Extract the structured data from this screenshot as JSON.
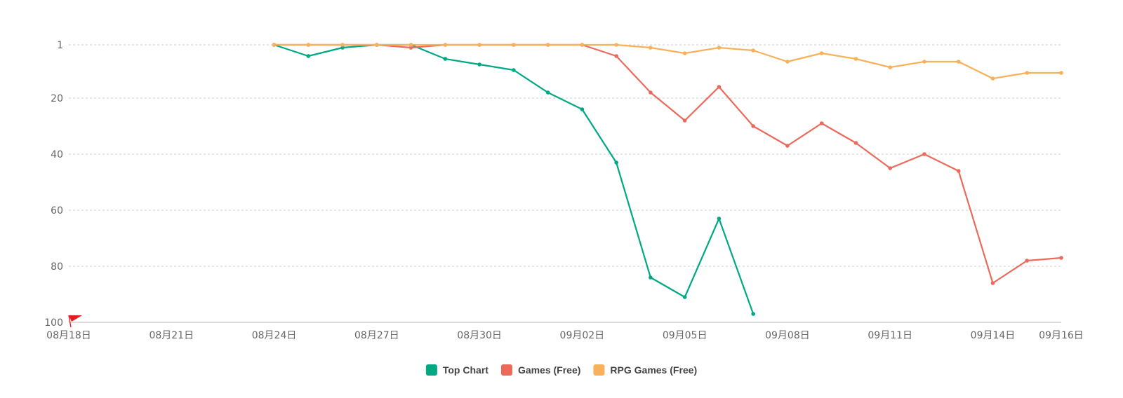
{
  "chart_data": {
    "type": "line",
    "title": "",
    "xlabel": "",
    "ylabel": "",
    "y_inverted": true,
    "ylim": [
      100,
      1
    ],
    "y_ticks": [
      1,
      20,
      40,
      60,
      80,
      100
    ],
    "y_tick_labels": [
      "1",
      "20",
      "40",
      "60",
      "80",
      "100"
    ],
    "x_range": [
      "08-18",
      "09-16"
    ],
    "x_ticks": [
      "08-18",
      "08-21",
      "08-24",
      "08-27",
      "08-30",
      "09-02",
      "09-05",
      "09-08",
      "09-11",
      "09-14",
      "09-16"
    ],
    "x_tick_labels": [
      "08月18日",
      "08月21日",
      "08月24日",
      "08月27日",
      "08月30日",
      "09月02日",
      "09月05日",
      "09月08日",
      "09月11日",
      "09月14日",
      "09月16日"
    ],
    "grid": "horizontal-dashed",
    "legend_position": "bottom-center",
    "series": [
      {
        "name": "Top Chart",
        "color": "#00a884",
        "x": [
          "08-24",
          "08-25",
          "08-26",
          "08-27",
          "08-28",
          "08-29",
          "08-30",
          "08-31",
          "09-01",
          "09-02",
          "09-03",
          "09-04",
          "09-05",
          "09-06",
          "09-07"
        ],
        "values": [
          1,
          5,
          2,
          1,
          1,
          6,
          8,
          10,
          18,
          24,
          43,
          84,
          91,
          63,
          97
        ]
      },
      {
        "name": "Games (Free)",
        "color": "#eb6a5c",
        "x": [
          "08-24",
          "08-25",
          "08-26",
          "08-27",
          "08-28",
          "08-29",
          "08-30",
          "08-31",
          "09-01",
          "09-02",
          "09-03",
          "09-04",
          "09-05",
          "09-06",
          "09-07",
          "09-08",
          "09-09",
          "09-10",
          "09-11",
          "09-12",
          "09-13",
          "09-14",
          "09-15",
          "09-16"
        ],
        "values": [
          1,
          1,
          1,
          1,
          2,
          1,
          1,
          1,
          1,
          1,
          5,
          18,
          28,
          16,
          30,
          37,
          29,
          36,
          45,
          40,
          46,
          86,
          78,
          77
        ]
      },
      {
        "name": "RPG Games (Free)",
        "color": "#f7b15b",
        "x": [
          "08-24",
          "08-25",
          "08-26",
          "08-27",
          "08-28",
          "08-29",
          "08-30",
          "08-31",
          "09-01",
          "09-02",
          "09-03",
          "09-04",
          "09-05",
          "09-06",
          "09-07",
          "09-08",
          "09-09",
          "09-10",
          "09-11",
          "09-12",
          "09-13",
          "09-14",
          "09-15",
          "09-16"
        ],
        "values": [
          1,
          1,
          1,
          1,
          1,
          1,
          1,
          1,
          1,
          1,
          1,
          2,
          4,
          2,
          3,
          7,
          4,
          6,
          9,
          7,
          7,
          13,
          11,
          11
        ]
      }
    ],
    "marker": {
      "name": "flag-icon",
      "color": "#e02020",
      "x": "08-18"
    }
  }
}
